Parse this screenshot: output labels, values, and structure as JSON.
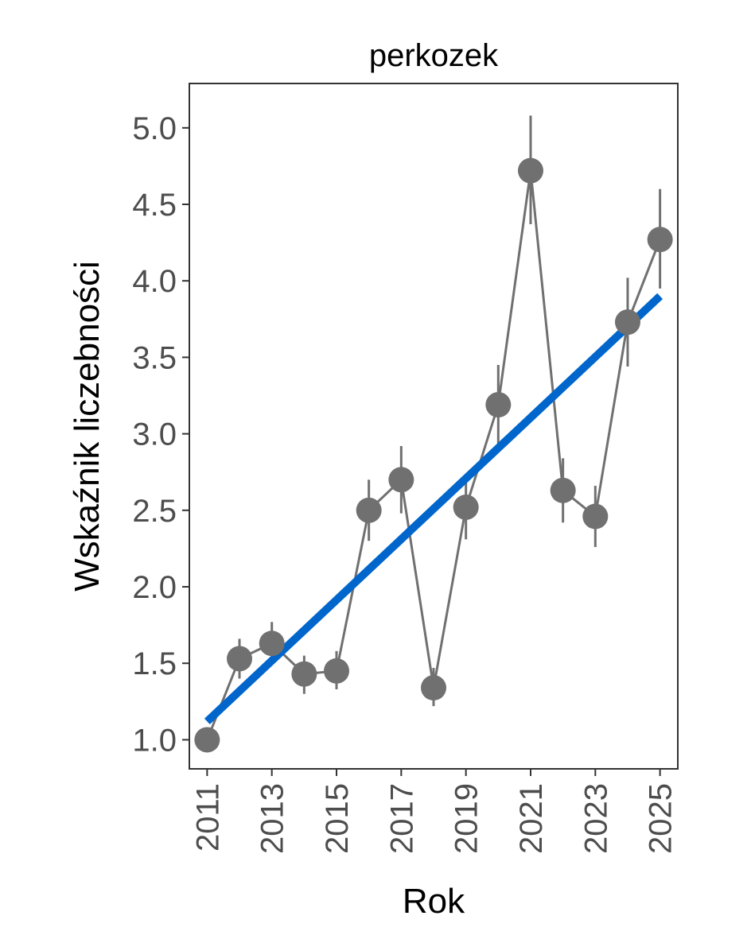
{
  "chart_data": {
    "type": "line",
    "title": "perkozek",
    "xlabel": "Rok",
    "ylabel": "Wskaźnik liczebności",
    "xlim": [
      2010.45,
      2025.55
    ],
    "ylim": [
      0.81,
      5.29
    ],
    "x_ticks": [
      2011,
      2013,
      2015,
      2017,
      2019,
      2021,
      2023,
      2025
    ],
    "y_ticks": [
      1.0,
      1.5,
      2.0,
      2.5,
      3.0,
      3.5,
      4.0,
      4.5,
      5.0
    ],
    "y_tick_labels": [
      "1.0",
      "1.5",
      "2.0",
      "2.5",
      "3.0",
      "3.5",
      "4.0",
      "4.5",
      "5.0"
    ],
    "grid": false,
    "series": [
      {
        "kind": "points-with-errorbars",
        "color": "#707070",
        "x": [
          2011,
          2012,
          2013,
          2014,
          2015,
          2016,
          2017,
          2018,
          2019,
          2020,
          2021,
          2022,
          2023,
          2024,
          2025
        ],
        "values": [
          1.0,
          1.53,
          1.63,
          1.43,
          1.45,
          2.5,
          2.7,
          1.34,
          2.52,
          3.19,
          4.72,
          2.63,
          2.46,
          3.73,
          4.27
        ],
        "lower": [
          1.0,
          1.4,
          1.5,
          1.3,
          1.33,
          2.3,
          2.48,
          1.22,
          2.31,
          2.93,
          4.37,
          2.42,
          2.26,
          3.44,
          3.95
        ],
        "upper": [
          1.0,
          1.66,
          1.77,
          1.55,
          1.58,
          2.7,
          2.92,
          1.47,
          2.72,
          3.45,
          5.08,
          2.84,
          2.66,
          4.02,
          4.6
        ]
      },
      {
        "kind": "trend",
        "color": "#0066cc",
        "x": [
          2011,
          2025
        ],
        "values": [
          1.12,
          3.9
        ]
      }
    ]
  }
}
